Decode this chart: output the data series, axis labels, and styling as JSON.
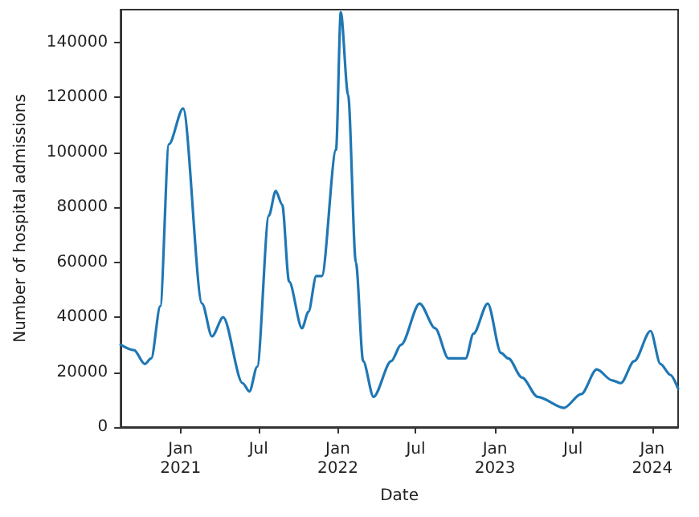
{
  "chart_data": {
    "type": "line",
    "xlabel": "Date",
    "ylabel": "Number of hospital admissions",
    "x": [
      "2020-08-15",
      "2020-09-15",
      "2020-10-10",
      "2020-10-25",
      "2020-11-15",
      "2020-12-05",
      "2021-01-07",
      "2021-02-20",
      "2021-03-15",
      "2021-04-10",
      "2021-05-25",
      "2021-06-10",
      "2021-06-28",
      "2021-07-25",
      "2021-08-10",
      "2021-08-25",
      "2021-09-10",
      "2021-10-10",
      "2021-10-25",
      "2021-11-12",
      "2021-11-25",
      "2021-12-28",
      "2022-01-08",
      "2022-01-25",
      "2022-02-12",
      "2022-03-01",
      "2022-03-25",
      "2022-05-05",
      "2022-05-28",
      "2022-07-10",
      "2022-08-15",
      "2022-09-15",
      "2022-10-25",
      "2022-11-12",
      "2022-12-15",
      "2023-01-15",
      "2023-02-01",
      "2023-03-05",
      "2023-04-10",
      "2023-06-10",
      "2023-07-20",
      "2023-08-25",
      "2023-09-30",
      "2023-10-20",
      "2023-11-20",
      "2023-12-28",
      "2024-01-20",
      "2024-02-12",
      "2024-03-01"
    ],
    "series": [
      {
        "color": "#1f77b4",
        "values": [
          30000,
          28000,
          23000,
          25000,
          44000,
          103000,
          116000,
          45000,
          33000,
          40000,
          16000,
          13000,
          22000,
          77000,
          86000,
          81000,
          53000,
          36000,
          42000,
          55000,
          55000,
          101000,
          151000,
          121000,
          60000,
          24000,
          11000,
          24000,
          30000,
          45000,
          36000,
          25000,
          25000,
          34000,
          45000,
          27000,
          25000,
          18000,
          11000,
          7000,
          12000,
          21000,
          17000,
          16000,
          24000,
          35000,
          23000,
          19000,
          14000
        ]
      }
    ],
    "xlim": [
      "2020-08-15",
      "2024-03-01"
    ],
    "xticks": [
      {
        "value": "2021-01-01",
        "label": "Jan\n2021"
      },
      {
        "value": "2021-07-01",
        "label": "Jul"
      },
      {
        "value": "2022-01-01",
        "label": "Jan\n2022"
      },
      {
        "value": "2022-07-01",
        "label": "Jul"
      },
      {
        "value": "2023-01-01",
        "label": "Jan\n2023"
      },
      {
        "value": "2023-07-01",
        "label": "Jul"
      },
      {
        "value": "2024-01-01",
        "label": "Jan\n2024"
      }
    ],
    "ylim": [
      0,
      152000
    ],
    "yticks": [
      0,
      20000,
      40000,
      60000,
      80000,
      100000,
      120000,
      140000
    ],
    "grid": false,
    "marker": "none",
    "line_style": "solid"
  }
}
